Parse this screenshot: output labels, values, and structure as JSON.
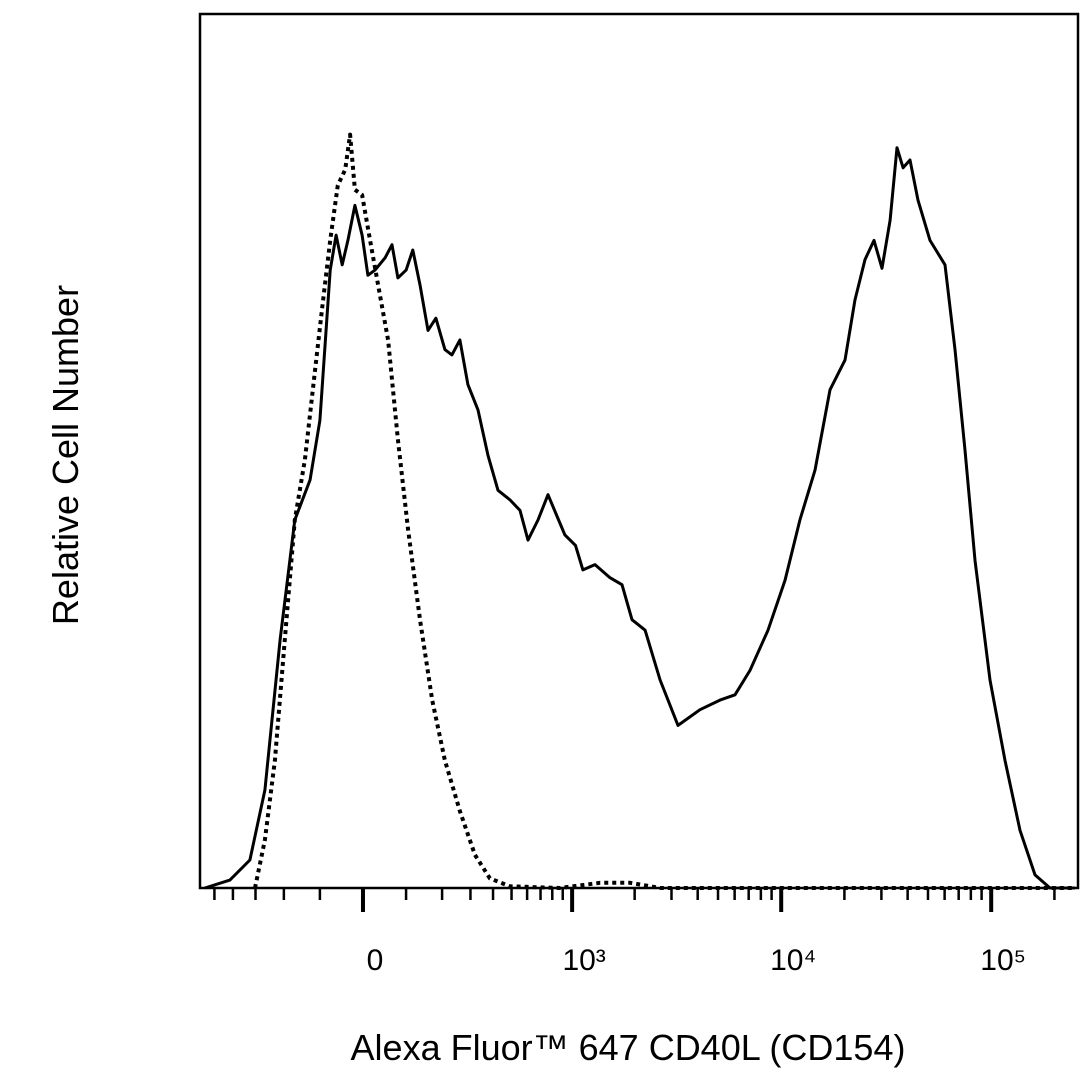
{
  "chart_data": {
    "type": "histogram-overlay",
    "x_label": "Alexa Fluor™ 647 CD40L (CD154)",
    "y_label": "Relative Cell Number",
    "xscale": "asinh",
    "xlim": [
      -592,
      259000
    ],
    "ylim": [
      0,
      100
    ],
    "xticks": [
      0,
      {
        "value": 1000,
        "label": "10³"
      },
      {
        "value": 10000,
        "label": "10⁴"
      },
      {
        "value": 100000,
        "label": "10⁵"
      }
    ],
    "xminor_ticks": [
      -500,
      -400,
      -300,
      -200,
      -100,
      100,
      200,
      300,
      400,
      500,
      600,
      700,
      800,
      900,
      2000,
      3000,
      4000,
      5000,
      6000,
      7000,
      8000,
      9000,
      20000,
      30000,
      40000,
      50000,
      60000,
      70000,
      80000,
      90000,
      200000
    ],
    "series": [
      {
        "color": "#000000",
        "style": "solid",
        "x": [
          -559,
          -415,
          -323,
          -264,
          -212,
          -167,
          -125,
          -100,
          -75,
          -61,
          -47,
          -34,
          -18,
          -2,
          11,
          27,
          50,
          66,
          80,
          100,
          117,
          136,
          158,
          181,
          209,
          232,
          260,
          290,
          331,
          376,
          425,
          491,
          552,
          606,
          680,
          762,
          859,
          922,
          1038,
          1128,
          1290,
          1524,
          1740,
          1942,
          2244,
          2646,
          3223,
          4102,
          5110,
          6024,
          7099,
          8650,
          10424,
          12281,
          14484,
          17075,
          20135,
          22460,
          25072,
          27662,
          30212,
          32987,
          35598,
          38046,
          41065,
          44839,
          51102,
          60262,
          67218,
          75031,
          83742,
          98736,
          116280,
          137088,
          161568,
          190536,
          250716
        ],
        "values": [
          0,
          0.9,
          3.2,
          11.2,
          28.4,
          42.1,
          46.7,
          53.5,
          70.7,
          74.7,
          71.3,
          74.1,
          78.1,
          74.7,
          70.1,
          70.7,
          72.1,
          73.6,
          69.8,
          70.7,
          73.0,
          69.0,
          63.8,
          65.2,
          61.6,
          61.0,
          62.7,
          57.6,
          54.7,
          49.5,
          45.5,
          44.4,
          43.2,
          39.8,
          42.1,
          45.0,
          42.1,
          40.4,
          39.2,
          36.4,
          37.0,
          35.5,
          34.7,
          30.7,
          29.5,
          23.8,
          18.6,
          20.4,
          21.5,
          22.1,
          24.9,
          29.5,
          35.2,
          42.1,
          47.8,
          57.0,
          60.4,
          67.3,
          71.9,
          74.1,
          70.9,
          76.4,
          84.7,
          82.4,
          83.3,
          78.7,
          74.1,
          71.3,
          61.6,
          50.1,
          37.5,
          23.8,
          14.6,
          6.6,
          1.5,
          0,
          0
        ]
      },
      {
        "color": "#000000",
        "style": "dotted",
        "x": [
          -302,
          -264,
          -229,
          -197,
          -167,
          -139,
          -112,
          -95,
          -75,
          -57,
          -40,
          -29,
          -18,
          -2,
          16,
          34,
          57,
          80,
          105,
          136,
          170,
          209,
          260,
          318,
          385,
          491,
          873,
          1365,
          1902,
          2646,
          250716
        ],
        "values": [
          0,
          5.5,
          14.6,
          28.4,
          42.1,
          49.0,
          59.3,
          66.1,
          74.1,
          80.4,
          82.2,
          86.2,
          79.9,
          79.3,
          74.1,
          69.0,
          62.7,
          51.3,
          41.0,
          30.7,
          21.5,
          14.6,
          8.8,
          3.8,
          1.1,
          0.2,
          0,
          0.6,
          0.6,
          0,
          0
        ]
      }
    ]
  }
}
